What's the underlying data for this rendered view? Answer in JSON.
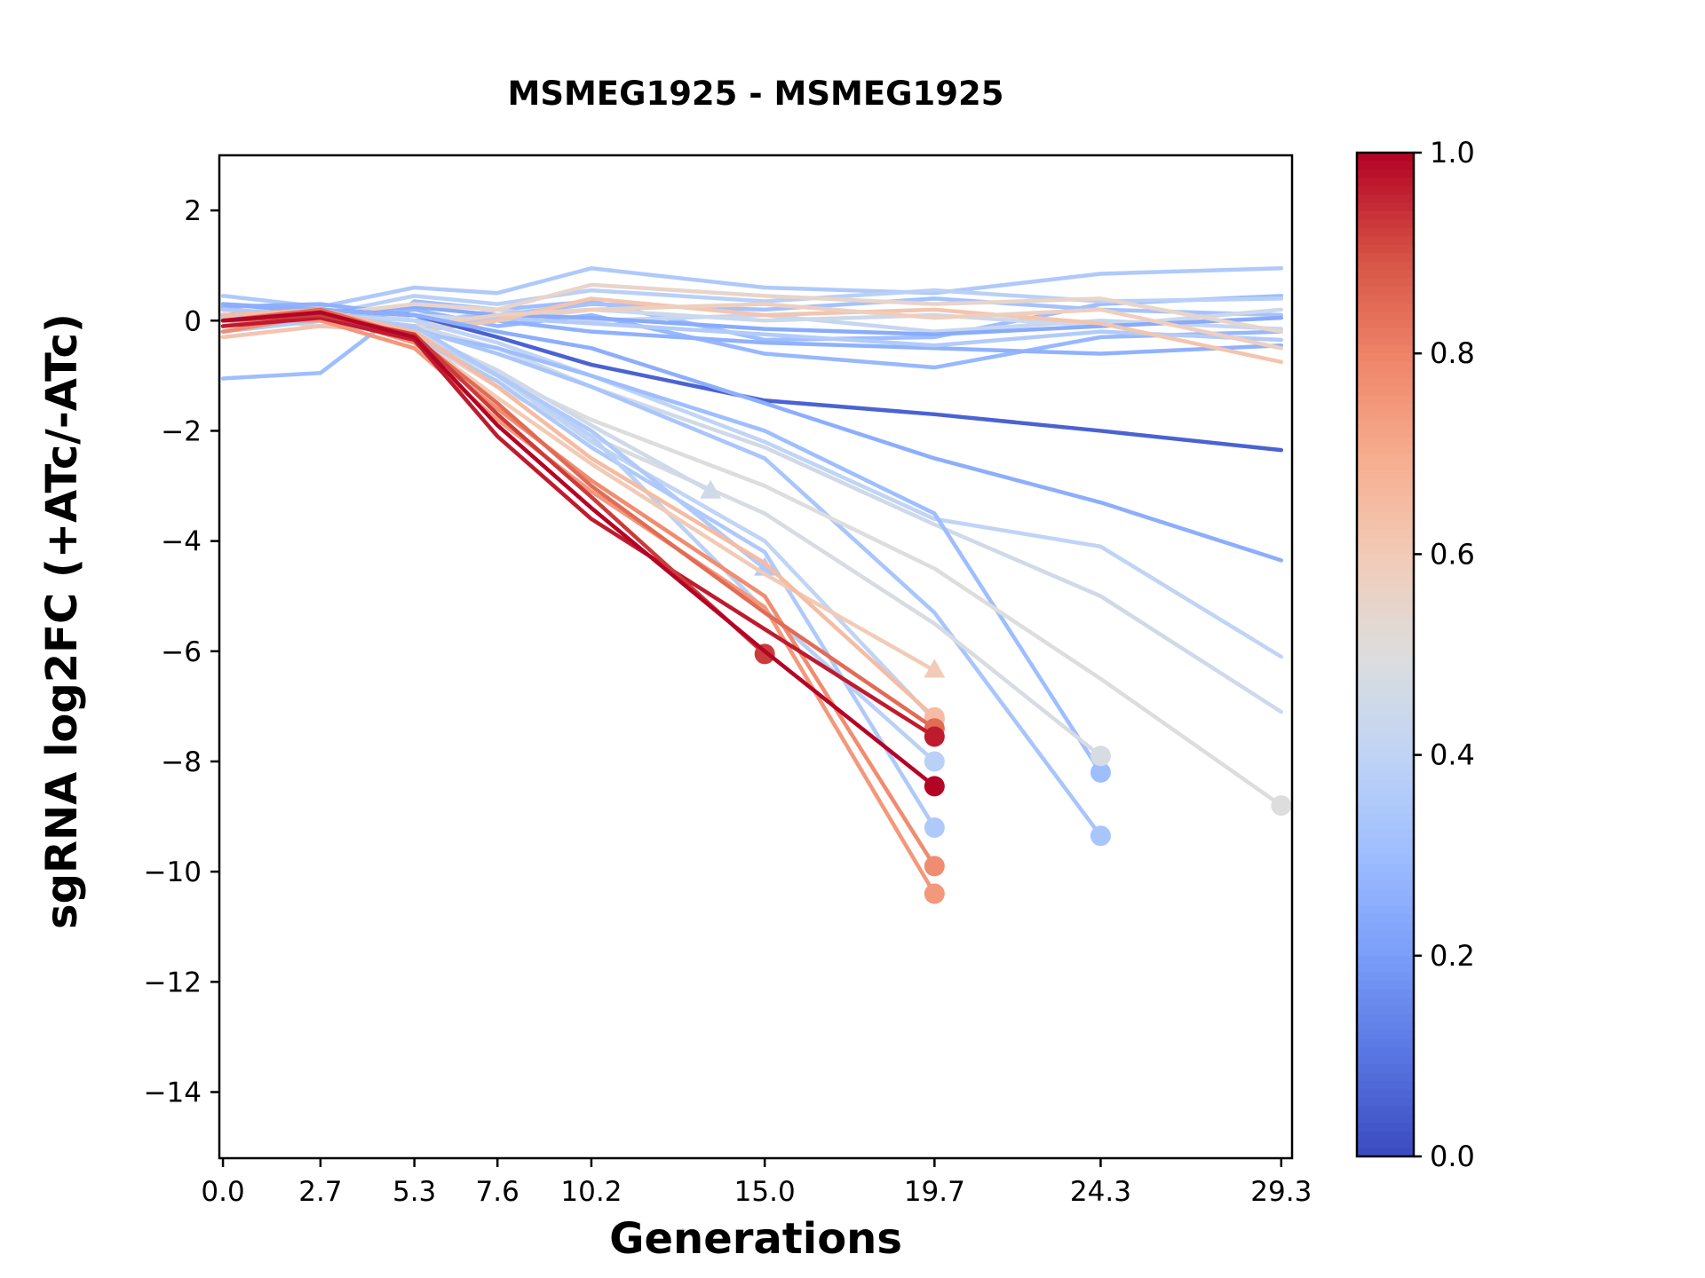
{
  "title": "MSMEG1925 - MSMEG1925",
  "xlabel": "Generations",
  "ylabel": "sgRNA log2FC (+ATc/-ATc)",
  "colorbar": {
    "min": 0.0,
    "max": 1.0,
    "tick_labels": [
      "1.0",
      "0.8",
      "0.6",
      "0.4",
      "0.2",
      "0.0"
    ],
    "tick_values": [
      1.0,
      0.8,
      0.6,
      0.4,
      0.2,
      0.0
    ],
    "colormap": "coolwarm",
    "color_low": "#3b4cc0",
    "color_mid": "#dddddd",
    "color_high": "#b40426"
  },
  "chart_data": {
    "type": "line",
    "title": "MSMEG1925 - MSMEG1925",
    "xlabel": "Generations",
    "ylabel": "sgRNA log2FC (+ATc/-ATc)",
    "grid": false,
    "legend": "none (colorbar 0.0-1.0 encodes series value)",
    "xlim": [
      -0.1,
      29.6
    ],
    "ylim": [
      -15.2,
      3.0
    ],
    "x_ticks": [
      0.0,
      2.7,
      5.3,
      7.6,
      10.2,
      15.0,
      19.7,
      24.3,
      29.3
    ],
    "x_tick_labels": [
      "0.0",
      "2.7",
      "5.3",
      "7.6",
      "10.2",
      "15.0",
      "19.7",
      "24.3",
      "29.3"
    ],
    "y_ticks": [
      2,
      0,
      -2,
      -4,
      -6,
      -8,
      -10,
      -12,
      -14
    ],
    "y_tick_labels": [
      "2",
      "0",
      "−2",
      "−4",
      "−6",
      "−8",
      "−10",
      "−12",
      "−14"
    ],
    "series": [
      {
        "value": 0.3,
        "marker": null,
        "x": [
          0,
          2.7,
          5.3,
          7.6,
          10.2,
          15.0,
          19.7,
          24.3,
          29.3
        ],
        "y": [
          -1.05,
          -0.95,
          0.35,
          0.2,
          0.35,
          -0.35,
          -0.3,
          0.3,
          0.45
        ]
      },
      {
        "value": 0.35,
        "marker": null,
        "x": [
          0,
          2.7,
          5.3,
          7.6,
          10.2,
          15.0,
          19.7,
          24.3,
          29.3
        ],
        "y": [
          0.45,
          0.25,
          0.6,
          0.5,
          0.95,
          0.6,
          0.5,
          0.85,
          0.95
        ]
      },
      {
        "value": 0.38,
        "marker": null,
        "x": [
          0,
          2.7,
          5.3,
          7.6,
          10.2,
          15.0,
          19.7,
          24.3,
          29.3
        ],
        "y": [
          0.2,
          0.1,
          0.45,
          0.3,
          0.55,
          0.35,
          0.55,
          0.35,
          0.4
        ]
      },
      {
        "value": 0.28,
        "marker": null,
        "x": [
          0,
          2.7,
          5.3,
          7.6,
          10.2,
          15.0,
          19.7,
          24.3,
          29.3
        ],
        "y": [
          0.1,
          0.0,
          0.2,
          -0.1,
          0.1,
          -0.6,
          -0.85,
          -0.3,
          -0.2
        ]
      },
      {
        "value": 0.42,
        "marker": null,
        "x": [
          0,
          2.7,
          5.3,
          7.6,
          10.2,
          15.0,
          19.7,
          24.3,
          29.3
        ],
        "y": [
          0.0,
          0.1,
          -0.1,
          0.2,
          0.0,
          0.1,
          -0.2,
          0.0,
          -0.15
        ]
      },
      {
        "value": 0.32,
        "marker": null,
        "x": [
          0,
          2.7,
          5.3,
          7.6,
          10.2,
          15.0,
          19.7,
          24.3,
          29.3
        ],
        "y": [
          -0.1,
          0.2,
          0.0,
          0.1,
          0.3,
          0.2,
          0.4,
          0.2,
          0.1
        ]
      },
      {
        "value": 0.26,
        "marker": null,
        "x": [
          0,
          2.7,
          5.3,
          7.6,
          10.2,
          15.0,
          19.7,
          24.3,
          29.3
        ],
        "y": [
          0.25,
          0.3,
          0.1,
          0.0,
          -0.2,
          -0.4,
          -0.5,
          -0.6,
          -0.45
        ]
      },
      {
        "value": 0.44,
        "marker": null,
        "x": [
          0,
          2.7,
          5.3,
          7.6,
          10.2,
          15.0,
          19.7,
          24.3,
          29.3
        ],
        "y": [
          0.1,
          -0.1,
          0.1,
          0.0,
          0.2,
          0.0,
          0.1,
          -0.1,
          0.2
        ]
      },
      {
        "value": 0.24,
        "marker": null,
        "x": [
          0,
          2.7,
          5.3,
          7.6,
          10.2,
          15.0,
          19.7,
          24.3,
          29.3
        ],
        "y": [
          0.3,
          0.15,
          0.25,
          0.1,
          0.05,
          -0.15,
          -0.25,
          -0.1,
          0.05
        ]
      },
      {
        "value": 0.36,
        "marker": null,
        "x": [
          0,
          2.7,
          5.3,
          7.6,
          10.2,
          15.0,
          19.7,
          24.3,
          29.3
        ],
        "y": [
          -0.2,
          0.0,
          -0.15,
          0.05,
          -0.05,
          -0.25,
          -0.45,
          -0.2,
          -0.35
        ]
      },
      {
        "value": 0.55,
        "marker": null,
        "x": [
          0,
          2.7,
          5.3,
          7.6,
          10.2,
          15.0,
          19.7,
          24.3,
          29.3
        ],
        "y": [
          0.2,
          0.1,
          0.3,
          0.2,
          0.65,
          0.45,
          0.3,
          0.4,
          -0.2
        ]
      },
      {
        "value": 0.62,
        "marker": null,
        "x": [
          0,
          2.7,
          5.3,
          7.6,
          10.2,
          15.0,
          19.7,
          24.3,
          29.3
        ],
        "y": [
          -0.3,
          -0.1,
          -0.2,
          0.0,
          0.4,
          0.1,
          0.2,
          -0.05,
          -0.75
        ]
      },
      {
        "value": 0.58,
        "marker": null,
        "x": [
          0,
          2.7,
          5.3,
          7.6,
          10.2,
          15.0,
          19.7,
          24.3,
          29.3
        ],
        "y": [
          0.1,
          0.05,
          -0.1,
          0.1,
          0.2,
          0.3,
          0.05,
          0.2,
          -0.5
        ]
      },
      {
        "value": 0.05,
        "marker": null,
        "x": [
          0,
          2.7,
          5.3,
          7.6,
          10.2,
          15.0,
          19.7,
          24.3,
          29.3
        ],
        "y": [
          0.1,
          0.2,
          0.1,
          -0.3,
          -0.8,
          -1.45,
          -1.7,
          -2.0,
          -2.35
        ]
      },
      {
        "value": 0.25,
        "marker": null,
        "x": [
          0,
          2.7,
          5.3,
          7.6,
          10.2,
          15.0,
          19.7,
          24.3,
          29.3
        ],
        "y": [
          0.3,
          0.2,
          0.1,
          -0.2,
          -0.5,
          -1.5,
          -2.5,
          -3.3,
          -4.35
        ]
      },
      {
        "value": 0.4,
        "marker": null,
        "x": [
          0,
          2.7,
          5.3,
          7.6,
          10.2,
          15.0,
          19.7,
          24.3,
          29.3
        ],
        "y": [
          0.0,
          0.1,
          0.0,
          -0.4,
          -1.0,
          -2.2,
          -3.6,
          -4.1,
          -6.1
        ]
      },
      {
        "value": 0.45,
        "marker": null,
        "x": [
          0,
          2.7,
          5.3,
          7.6,
          10.2,
          15.0,
          19.7,
          24.3,
          29.3
        ],
        "y": [
          0.0,
          0.0,
          -0.1,
          -0.5,
          -1.2,
          -2.3,
          -3.7,
          -5.0,
          -7.1
        ]
      },
      {
        "value": 0.3,
        "marker": "circle",
        "x": [
          0,
          2.7,
          5.3,
          7.6,
          10.2,
          15.0,
          19.7,
          24.3
        ],
        "y": [
          0.0,
          0.0,
          -0.2,
          -0.5,
          -1.0,
          -2.0,
          -3.5,
          -8.2
        ]
      },
      {
        "value": 0.33,
        "marker": "circle",
        "x": [
          0,
          2.7,
          5.3,
          7.6,
          10.2,
          15.0,
          19.7,
          24.3
        ],
        "y": [
          0.0,
          0.1,
          -0.15,
          -0.6,
          -1.2,
          -2.5,
          -5.3,
          -9.35
        ]
      },
      {
        "value": 0.48,
        "marker": "circle",
        "x": [
          0,
          2.7,
          5.3,
          7.6,
          10.2,
          15.0,
          19.7,
          24.3
        ],
        "y": [
          0.0,
          0.0,
          -0.3,
          -1.2,
          -2.1,
          -3.5,
          -5.5,
          -7.9
        ]
      },
      {
        "value": 0.5,
        "marker": "circle",
        "x": [
          0,
          2.7,
          5.3,
          7.6,
          10.2,
          15.0,
          19.7,
          24.3,
          29.3
        ],
        "y": [
          0.0,
          0.05,
          -0.25,
          -1.0,
          -1.8,
          -3.0,
          -4.5,
          -6.5,
          -8.8
        ]
      },
      {
        "value": 0.4,
        "marker": "circle",
        "x": [
          0,
          2.7,
          5.3,
          7.6,
          10.2,
          15.0,
          19.7
        ],
        "y": [
          0.0,
          0.1,
          -0.2,
          -1.0,
          -2.2,
          -4.0,
          -7.25
        ]
      },
      {
        "value": 0.35,
        "marker": "circle",
        "x": [
          0,
          2.7,
          5.3,
          7.6,
          10.2,
          15.0,
          19.7
        ],
        "y": [
          0.0,
          0.0,
          -0.3,
          -1.1,
          -2.3,
          -4.2,
          -9.2
        ]
      },
      {
        "value": 0.38,
        "marker": "circle",
        "x": [
          0,
          2.7,
          5.3,
          7.6,
          10.2,
          15.0,
          19.7
        ],
        "y": [
          0.05,
          0.1,
          -0.25,
          -0.95,
          -2.1,
          -5.25,
          -8.0
        ]
      },
      {
        "value": 0.45,
        "marker": "triangle",
        "x": [
          0,
          2.7,
          5.3,
          7.6,
          10.2,
          13.5
        ],
        "y": [
          0.0,
          0.1,
          -0.2,
          -0.9,
          -1.9,
          -3.1
        ]
      },
      {
        "value": 0.35,
        "marker": "triangle",
        "x": [
          0,
          2.7,
          5.3,
          7.6,
          10.2,
          15.0
        ],
        "y": [
          0.2,
          0.1,
          -0.1,
          -1.0,
          -2.0,
          -4.5
        ]
      },
      {
        "value": 0.6,
        "marker": "triangle",
        "x": [
          0,
          2.7,
          5.3,
          7.6,
          10.2,
          15.0,
          19.7
        ],
        "y": [
          0.0,
          0.1,
          -0.3,
          -1.4,
          -2.6,
          -4.6,
          -6.35
        ]
      },
      {
        "value": 0.65,
        "marker": "circle",
        "x": [
          0,
          2.7,
          5.3,
          7.6,
          10.2,
          15.0,
          19.7
        ],
        "y": [
          0.1,
          0.2,
          -0.2,
          -1.2,
          -2.5,
          -4.4,
          -7.2
        ]
      },
      {
        "value": 0.78,
        "marker": "circle",
        "x": [
          0,
          2.7,
          5.3,
          7.6,
          10.2,
          15.0,
          19.7
        ],
        "y": [
          -0.2,
          0.1,
          -0.4,
          -1.6,
          -2.9,
          -5.0,
          -9.9
        ]
      },
      {
        "value": 0.75,
        "marker": "circle",
        "x": [
          0,
          2.7,
          5.3,
          7.6,
          10.2,
          15.0,
          19.7
        ],
        "y": [
          0.0,
          0.0,
          -0.5,
          -1.8,
          -3.1,
          -5.2,
          -10.4
        ]
      },
      {
        "value": 0.85,
        "marker": "circle",
        "x": [
          0,
          2.7,
          5.3,
          7.6,
          10.2,
          15.0,
          19.7
        ],
        "y": [
          0.0,
          0.2,
          -0.3,
          -1.5,
          -3.0,
          -5.3,
          -7.4
        ]
      },
      {
        "value": 0.97,
        "marker": "circle",
        "x": [
          0,
          2.7,
          5.3,
          7.6,
          10.2,
          15.0,
          19.7
        ],
        "y": [
          -0.1,
          0.05,
          -0.35,
          -2.1,
          -3.6,
          -5.6,
          -7.55
        ]
      },
      {
        "value": 0.93,
        "marker": "circle",
        "x": [
          0,
          2.7,
          5.3,
          7.6,
          10.2,
          15.0
        ],
        "y": [
          0.0,
          0.1,
          -0.25,
          -1.7,
          -3.2,
          -6.05
        ]
      },
      {
        "value": 1.0,
        "marker": "circle",
        "x": [
          0,
          2.7,
          5.3,
          7.6,
          10.2,
          15.0,
          19.7
        ],
        "y": [
          0.0,
          0.15,
          -0.3,
          -1.9,
          -3.4,
          -6.0,
          -8.45
        ]
      }
    ]
  }
}
